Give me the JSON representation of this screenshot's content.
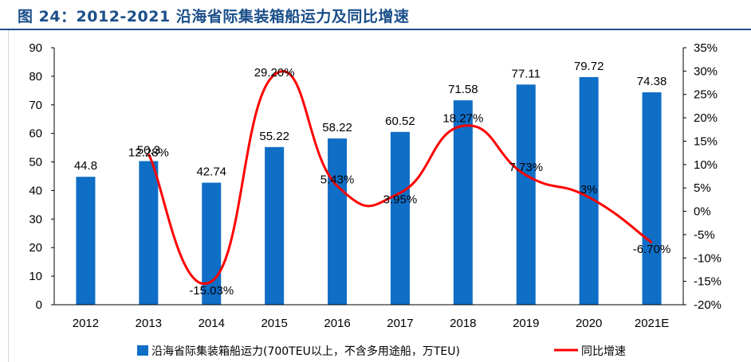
{
  "header": {
    "title": "图 24：2012-2021 沿海省际集装箱船运力及同比增速"
  },
  "chart_data": {
    "type": "bar",
    "categories": [
      "2012",
      "2013",
      "2014",
      "2015",
      "2016",
      "2017",
      "2018",
      "2019",
      "2020",
      "2021E"
    ],
    "series": [
      {
        "name": "沿海省际集装箱船运力(700TEU以上，不含多用途船，万TEU)",
        "type": "bar",
        "axis": "left",
        "values": [
          44.8,
          50.3,
          42.74,
          55.22,
          58.22,
          60.52,
          71.58,
          77.11,
          79.72,
          74.38
        ],
        "labels": [
          "44.8",
          "50.3",
          "42.74",
          "55.22",
          "58.22",
          "60.52",
          "71.58",
          "77.11",
          "79.72",
          "74.38"
        ]
      },
      {
        "name": "同比增速",
        "type": "line",
        "axis": "right",
        "values": [
          null,
          12.28,
          -15.03,
          29.2,
          5.43,
          3.95,
          18.27,
          7.73,
          3.0,
          -6.7
        ],
        "labels": [
          "",
          "12.28%",
          "-15.03%",
          "29.20%",
          "5.43%",
          "3.95%",
          "18.27%",
          "7.73%",
          "3%",
          "-6.70%"
        ]
      }
    ],
    "y_left": {
      "min": 0,
      "max": 90,
      "ticks": [
        "0",
        "10",
        "20",
        "30",
        "40",
        "50",
        "60",
        "70",
        "80",
        "90"
      ]
    },
    "y_right": {
      "min": -20,
      "max": 35,
      "ticks": [
        "-20%",
        "-15%",
        "-10%",
        "-5%",
        "0%",
        "5%",
        "10%",
        "15%",
        "20%",
        "25%",
        "30%",
        "35%"
      ]
    },
    "legend_position": "bottom",
    "colors": {
      "bar": "#0f6ec6",
      "line": "#ff0000",
      "title": "#1b4f8a"
    }
  }
}
